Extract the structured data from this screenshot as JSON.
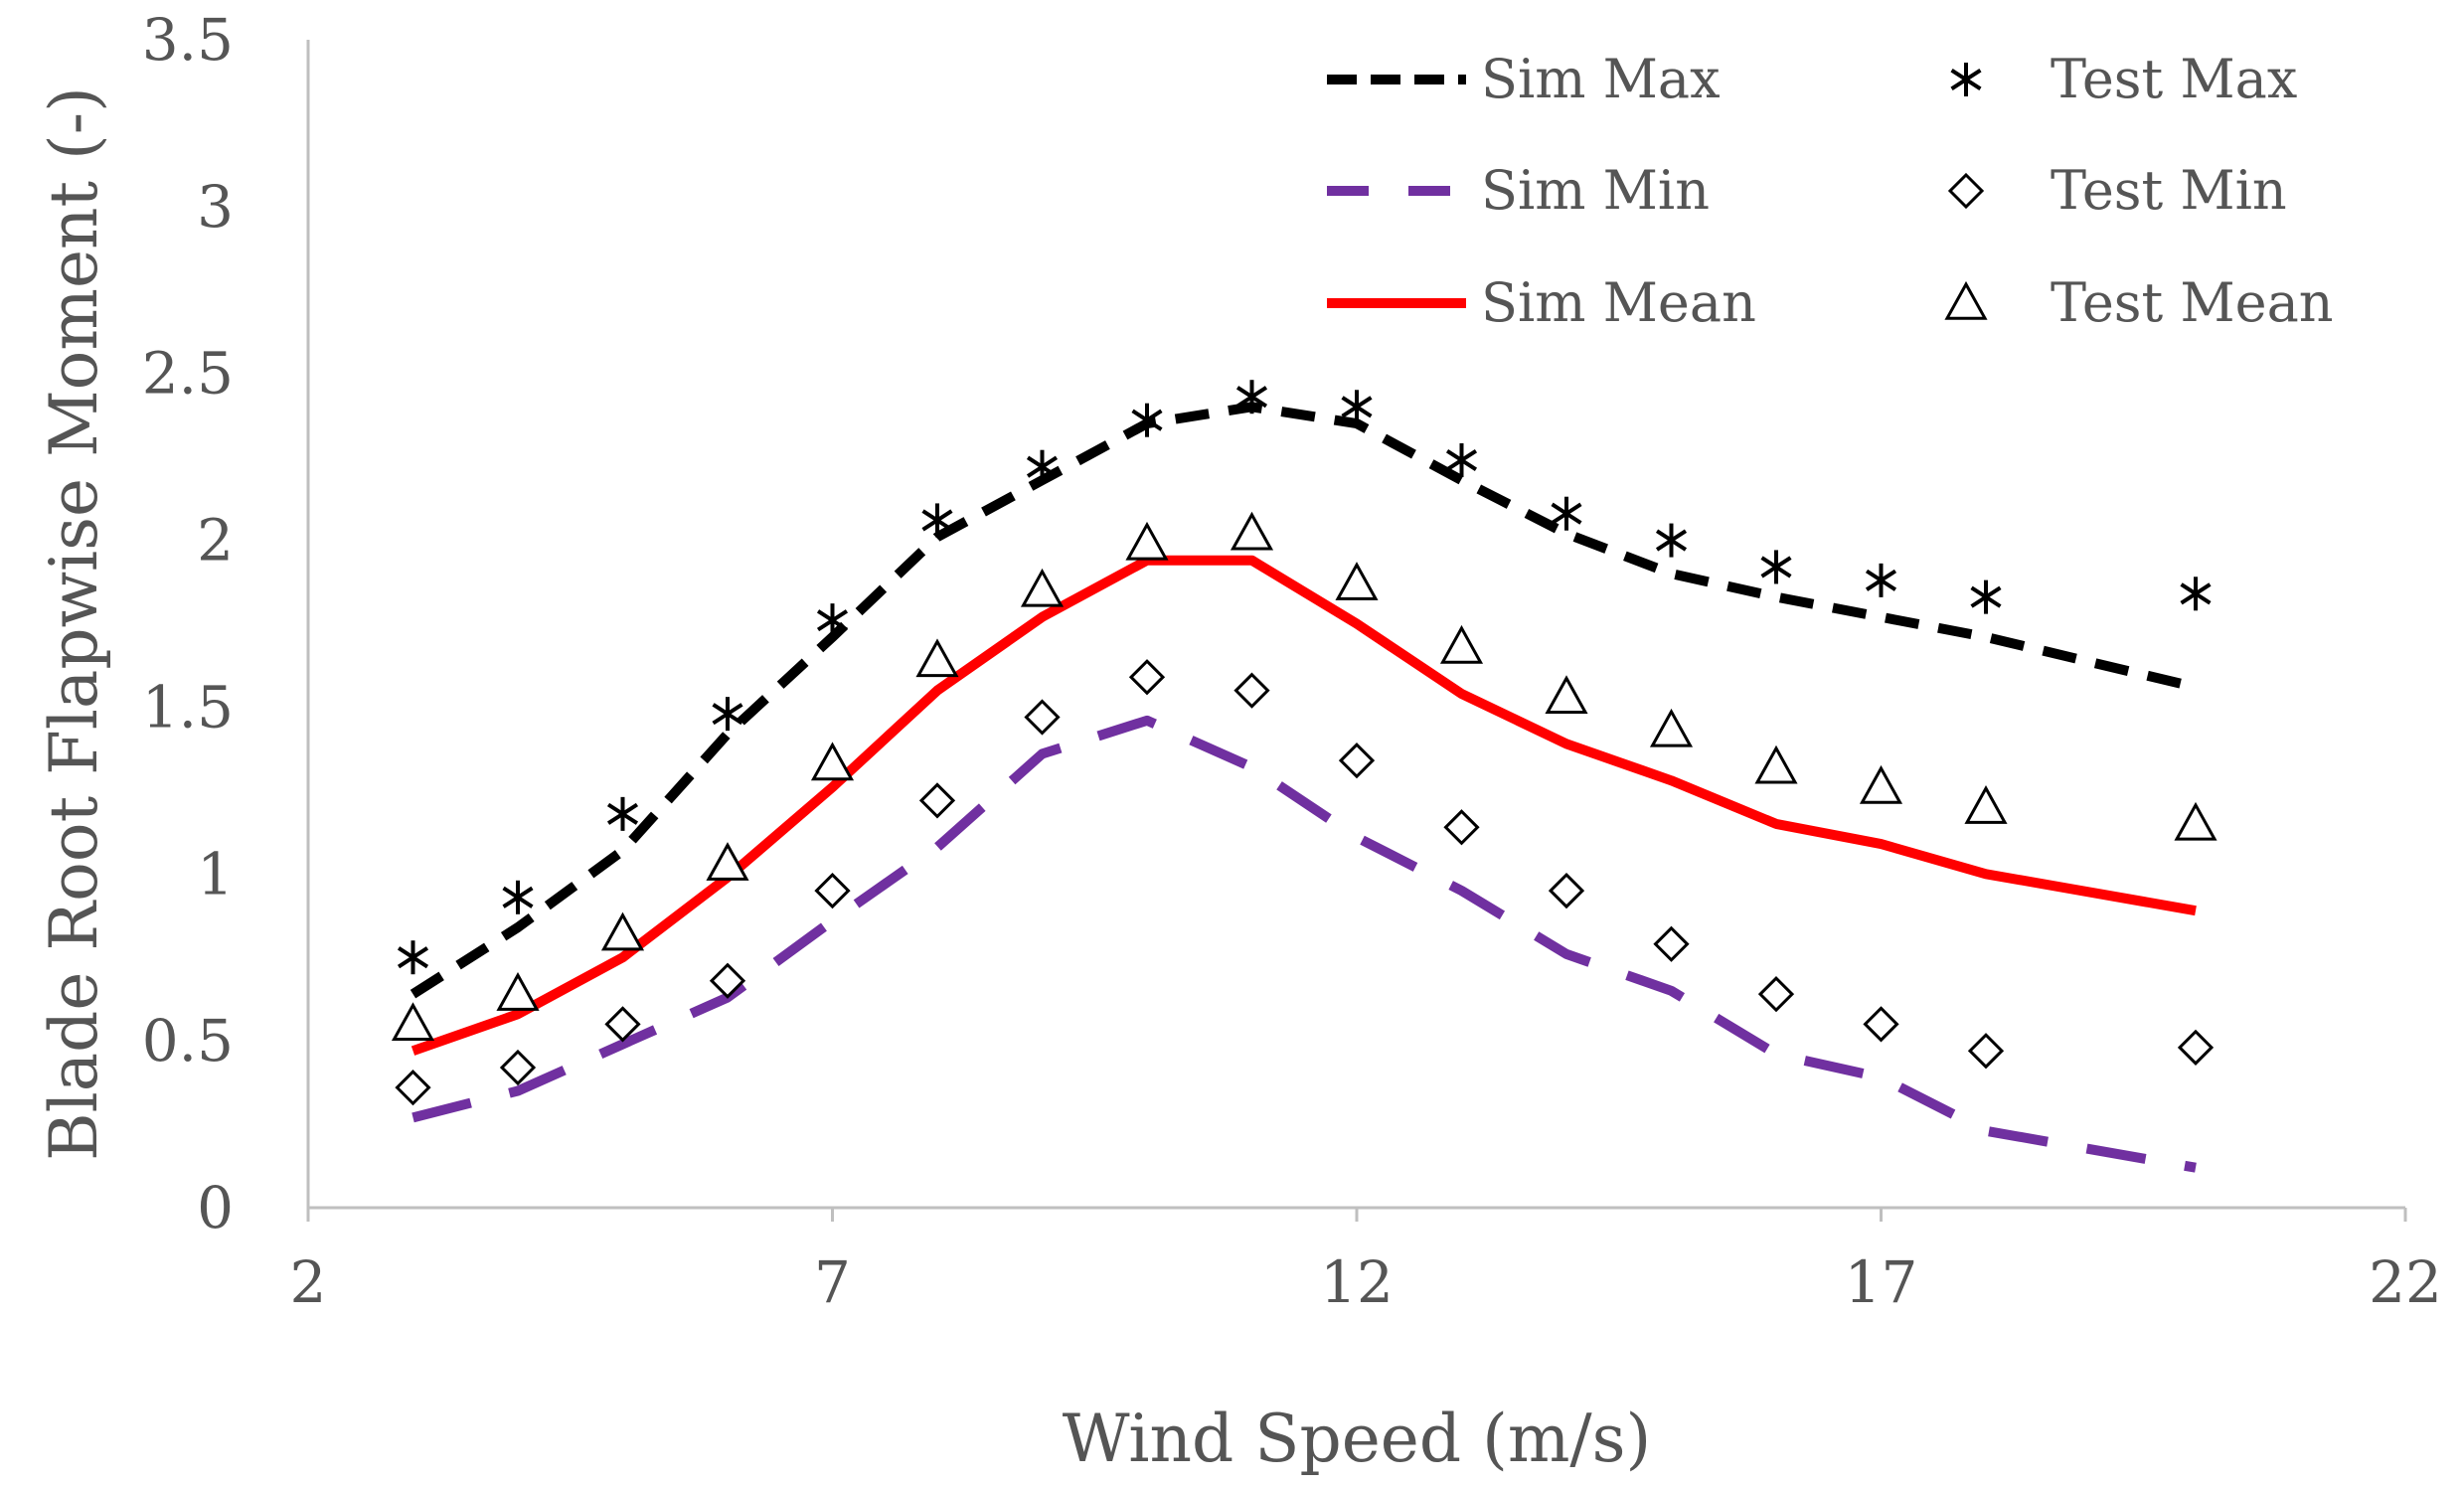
{
  "chart_data": {
    "type": "line",
    "title": "",
    "xlabel": "Wind Speed (m/s)",
    "ylabel": "Blade Root Flapwise Moment (-)",
    "xlim": [
      2,
      22
    ],
    "ylim": [
      0,
      3.5
    ],
    "xticks": [
      "2",
      "7",
      "12",
      "17",
      "22"
    ],
    "yticks": [
      "0",
      "0.5",
      "1",
      "1.5",
      "2",
      "2.5",
      "3",
      "3.5"
    ],
    "grid": false,
    "legend_position": "top-right",
    "x": [
      3,
      4,
      5,
      6,
      7,
      8,
      9,
      10,
      11,
      12,
      13,
      14,
      15,
      16,
      17,
      18,
      20
    ],
    "series": [
      {
        "name": "Sim Max",
        "style": "dashed-line",
        "color": "#000000",
        "values": [
          0.64,
          0.84,
          1.07,
          1.42,
          1.71,
          2.01,
          2.18,
          2.35,
          2.4,
          2.35,
          2.18,
          2.02,
          1.9,
          1.83,
          1.77,
          1.71,
          1.56
        ]
      },
      {
        "name": "Sim Min",
        "style": "long-dashed-line",
        "color": "#7030A0",
        "values": [
          0.27,
          0.35,
          0.49,
          0.63,
          0.86,
          1.08,
          1.36,
          1.46,
          1.32,
          1.11,
          0.95,
          0.76,
          0.65,
          0.46,
          0.39,
          0.23,
          0.12
        ]
      },
      {
        "name": "Sim Mean",
        "style": "solid-line",
        "color": "#FF0000",
        "values": [
          0.47,
          0.58,
          0.75,
          0.99,
          1.26,
          1.55,
          1.77,
          1.94,
          1.94,
          1.75,
          1.54,
          1.39,
          1.28,
          1.15,
          1.09,
          1.0,
          0.89
        ]
      },
      {
        "name": "Test Max",
        "style": "asterisk-marker",
        "color": "#000000",
        "values": [
          0.75,
          0.93,
          1.18,
          1.48,
          1.76,
          2.06,
          2.22,
          2.36,
          2.43,
          2.4,
          2.24,
          2.08,
          2.0,
          1.92,
          1.88,
          1.83,
          1.84
        ]
      },
      {
        "name": "Test Min",
        "style": "diamond-marker",
        "color": "#000000",
        "values": [
          0.36,
          0.42,
          0.55,
          0.68,
          0.95,
          1.22,
          1.47,
          1.59,
          1.55,
          1.34,
          1.14,
          0.95,
          0.79,
          0.64,
          0.55,
          0.47,
          0.48
        ]
      },
      {
        "name": "Test Mean",
        "style": "triangle-marker",
        "color": "#000000",
        "values": [
          0.55,
          0.64,
          0.82,
          1.03,
          1.33,
          1.64,
          1.85,
          1.99,
          2.02,
          1.87,
          1.68,
          1.53,
          1.43,
          1.32,
          1.26,
          1.2,
          1.15
        ]
      }
    ]
  }
}
